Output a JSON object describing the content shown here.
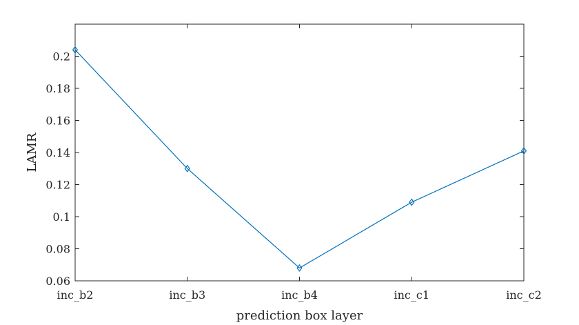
{
  "chart_data": {
    "type": "line",
    "title": "",
    "xlabel": "prediction box layer",
    "ylabel": "LAMR",
    "categories": [
      "inc_b2",
      "inc_b3",
      "inc_b4",
      "inc_c1",
      "inc_c2"
    ],
    "series": [
      {
        "values": [
          0.204,
          0.13,
          0.068,
          0.109,
          0.141
        ],
        "color": "#0072bd",
        "marker": "diamond"
      }
    ],
    "ylim": [
      0.06,
      0.22
    ],
    "yticks": [
      0.06,
      0.08,
      0.1,
      0.12,
      0.14,
      0.16,
      0.18,
      0.2
    ],
    "ytick_labels": [
      "0.06",
      "0.08",
      "0.1",
      "0.12",
      "0.14",
      "0.16",
      "0.18",
      "0.2"
    ],
    "grid": false,
    "legend": "none"
  }
}
